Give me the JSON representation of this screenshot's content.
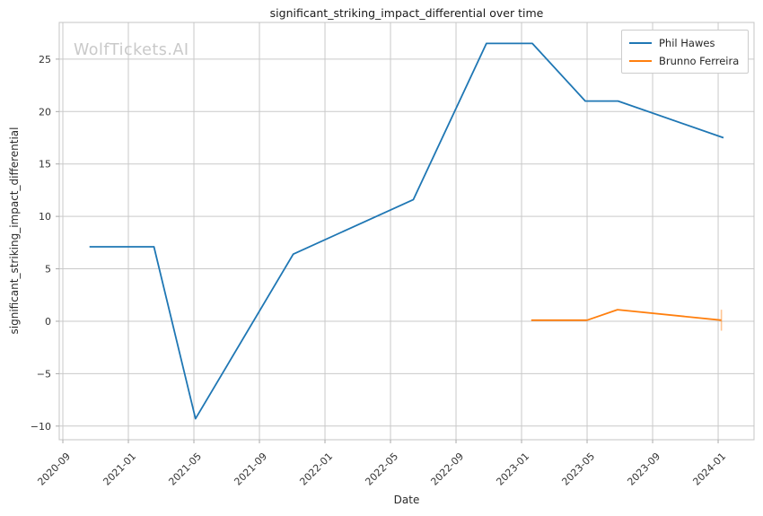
{
  "watermark": "WolfTickets.AI",
  "chart_data": {
    "type": "line",
    "title": "significant_striking_impact_differential over time",
    "xlabel": "Date",
    "ylabel": "significant_striking_impact_differential",
    "grid": true,
    "legend_position": "upper right",
    "x_epoch": "2020-09",
    "xlim_months": [
      -0.22,
      42.19
    ],
    "ylim": [
      -11.3,
      28.5
    ],
    "x_tick_labels": [
      "2020-09",
      "2021-01",
      "2021-05",
      "2021-09",
      "2022-01",
      "2022-05",
      "2022-09",
      "2023-01",
      "2023-05",
      "2023-09",
      "2024-01"
    ],
    "y_tick_values": [
      -10,
      -5,
      0,
      5,
      10,
      15,
      20,
      25
    ],
    "y_tick_labels": [
      "−10",
      "−5",
      "0",
      "5",
      "10",
      "15",
      "20",
      "25"
    ],
    "colors": {
      "grid": "#c9c9c9",
      "spine": "#c4c4c4",
      "tick": "#aaaaaa",
      "tick_label": "#333333"
    },
    "series": [
      {
        "name": "Phil Hawes",
        "color": "#1f77b4",
        "points": [
          {
            "x": "2020-10-20",
            "y": 7.1
          },
          {
            "x": "2021-02-18",
            "y": 7.1
          },
          {
            "x": "2021-05-04",
            "y": -9.3
          },
          {
            "x": "2021-11-03",
            "y": 6.4
          },
          {
            "x": "2022-06-13",
            "y": 11.6
          },
          {
            "x": "2022-10-27",
            "y": 26.5
          },
          {
            "x": "2023-01-21",
            "y": 26.5
          },
          {
            "x": "2023-04-28",
            "y": 21.0
          },
          {
            "x": "2023-06-28",
            "y": 21.0
          },
          {
            "x": "2024-01-11",
            "y": 17.5
          }
        ]
      },
      {
        "name": "Brunno Ferreira",
        "color": "#ff7f0e",
        "points": [
          {
            "x": "2023-01-19",
            "y": 0.1
          },
          {
            "x": "2023-05-01",
            "y": 0.1
          },
          {
            "x": "2023-06-27",
            "y": 1.1
          },
          {
            "x": "2024-01-07",
            "y": 0.1,
            "yerr": 1.0
          }
        ]
      }
    ]
  }
}
